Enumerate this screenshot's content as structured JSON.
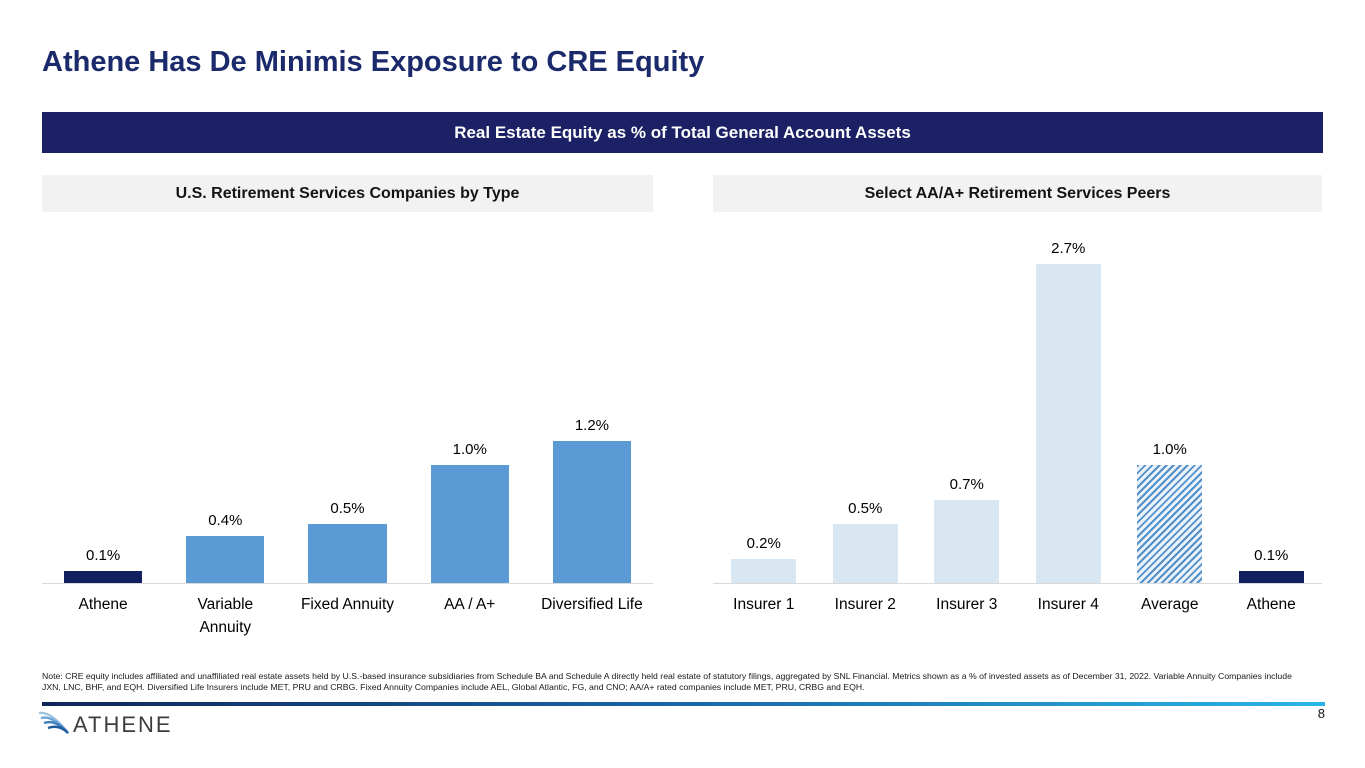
{
  "slide": {
    "title": "Athene Has De Minimis Exposure to CRE Equity",
    "banner": "Real Estate Equity as % of Total General Account Assets",
    "footnote": "Note: CRE equity includes affiliated and unaffiliated real estate assets held by U.S.-based insurance subsidiaries from Schedule BA and Schedule A directly held real estate of statutory filings, aggregated by SNL Financial. Metrics shown as a % of invested assets as of December 31, 2022. Variable Annuity Companies include JXN, LNC, BHF, and EQH. Diversified Life Insurers include MET, PRU and CRBG. Fixed Annuity Companies include AEL, Global Atlantic, FG, and CNO; AA/A+ rated companies include MET, PRU, CRBG and EQH.",
    "logo_text": "ATHENE",
    "page_number": "8"
  },
  "colors": {
    "title_navy": "#1b2a6b",
    "banner_bg": "#1b2164",
    "subheader_bg": "#f2f2f2",
    "bar_navy": "#13205f",
    "bar_blue": "#5b9bd5",
    "bar_lightblue": "#d9e7f3",
    "hatch_stripe_blue": "#5490c8",
    "axis_gray": "#d9d9d9",
    "accent_cyan": "#29b5e8",
    "logo_blue": "#2e6da4"
  },
  "chart_data": [
    {
      "type": "bar",
      "title": "U.S. Retirement Services Companies by Type",
      "unit": "%",
      "ylim": [
        0,
        2.9
      ],
      "grid": false,
      "value_labels_position": "above",
      "categories": [
        "Athene",
        "Variable Annuity",
        "Fixed Annuity",
        "AA / A+",
        "Diversified Life"
      ],
      "values": [
        0.1,
        0.4,
        0.5,
        1.0,
        1.2
      ],
      "labels": [
        "0.1%",
        "0.4%",
        "0.5%",
        "1.0%",
        "1.2%"
      ],
      "bar_styles": [
        "navy",
        "blue",
        "blue",
        "blue",
        "blue"
      ]
    },
    {
      "type": "bar",
      "title": "Select AA/A+ Retirement Services Peers",
      "unit": "%",
      "ylim": [
        0,
        2.9
      ],
      "grid": false,
      "value_labels_position": "above",
      "categories": [
        "Insurer 1",
        "Insurer 2",
        "Insurer 3",
        "Insurer 4",
        "Average",
        "Athene"
      ],
      "values": [
        0.2,
        0.5,
        0.7,
        2.7,
        1.0,
        0.1
      ],
      "labels": [
        "0.2%",
        "0.5%",
        "0.7%",
        "2.7%",
        "1.0%",
        "0.1%"
      ],
      "bar_styles": [
        "lightblue",
        "lightblue",
        "lightblue",
        "lightblue",
        "hatched",
        "navy"
      ]
    }
  ]
}
